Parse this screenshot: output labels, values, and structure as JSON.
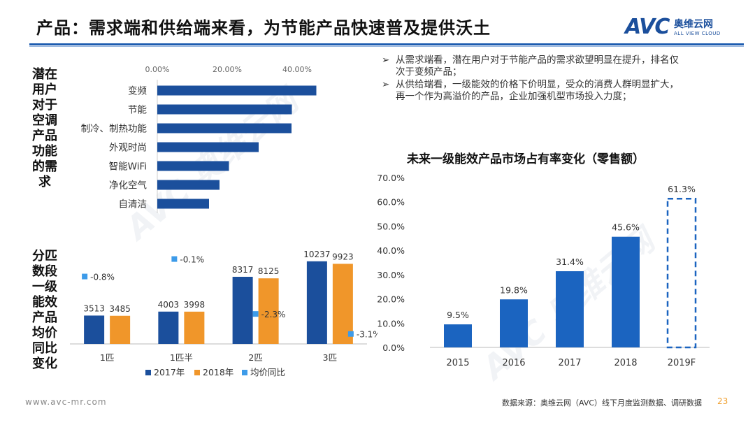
{
  "header": {
    "title": "产品：需求端和供给端来看，为节能产品快速普及提供沃土",
    "logo_text": "AVC",
    "logo_cn": "奥维云网",
    "logo_en": "ALL VIEW CLOUD",
    "accent_color": "#1d5cb0"
  },
  "left_labels": {
    "top": [
      "潜在",
      "用户",
      "对于",
      "空调",
      "产品",
      "功能",
      "的需",
      "求"
    ],
    "bottom": [
      "分匹",
      "数段",
      "一级",
      "能效",
      "产品",
      "均价",
      "同比",
      "变化"
    ]
  },
  "bullets": {
    "arrow": "➢",
    "items": [
      "从需求端看，潜在用户对于节能产品的需求欲望明显在提升，排名仅次于变频产品；",
      "从供给端看，一级能效的价格下价明显，受众的消费人群明显扩大，再一个作为高溢价的产品，企业加强机型市场投入力度；"
    ]
  },
  "footer": {
    "url": "www.avc-mr.com",
    "source": "数据来源：奥维云网（AVC）线下月度监测数据、调研数据",
    "page": "23"
  },
  "watermark": {
    "text": "AVC 奥维云网",
    "sub": "ALL VIEW CLOUD"
  },
  "chart_data": [
    {
      "type": "bar",
      "orientation": "horizontal",
      "title": "",
      "categories": [
        "变频",
        "节能",
        "制冷、制热功能",
        "外观时尚",
        "智能WiFi",
        "净化空气",
        "自清洁"
      ],
      "values": [
        0.455,
        0.385,
        0.384,
        0.29,
        0.205,
        0.178,
        0.148
      ],
      "xlim": [
        0,
        0.5
      ],
      "ticks": [
        0,
        0.2,
        0.4
      ],
      "tick_labels": [
        "0.00%",
        "20.00%",
        "40.00%"
      ],
      "color": "#1b4f9c"
    },
    {
      "type": "bar",
      "title": "",
      "categories": [
        "1匹",
        "1匹半",
        "2匹",
        "3匹"
      ],
      "series": [
        {
          "name": "2017年",
          "values": [
            3513,
            4003,
            8317,
            10237
          ],
          "color": "#1b4f9c"
        },
        {
          "name": "2018年",
          "values": [
            3485,
            3998,
            8125,
            9923
          ],
          "color": "#f0962a"
        }
      ],
      "ylim": [
        0,
        11000
      ],
      "secondary_series": {
        "name": "均价同比",
        "type": "marker",
        "color": "#3d9be9",
        "values": [
          -0.008,
          -0.001,
          -0.023,
          -0.031
        ],
        "labels": [
          "-0.8%",
          "-0.1%",
          "-2.3%",
          "-3.1%"
        ],
        "ylim": [
          -0.035,
          0.0
        ]
      },
      "legend": "bottom"
    },
    {
      "type": "bar",
      "title": "未来一级能效产品市场占有率变化（零售额）",
      "categories": [
        "2015",
        "2016",
        "2017",
        "2018",
        "2019F"
      ],
      "values": [
        9.5,
        19.8,
        31.4,
        45.6,
        61.3
      ],
      "value_labels": [
        "9.5%",
        "19.8%",
        "31.4%",
        "45.6%",
        "61.3%"
      ],
      "forecast_index": 4,
      "ylim": [
        0,
        70
      ],
      "ticks": [
        0,
        10,
        20,
        30,
        40,
        50,
        60,
        70
      ],
      "tick_labels": [
        "0.0%",
        "10.0%",
        "20.0%",
        "30.0%",
        "40.0%",
        "50.0%",
        "60.0%",
        "70.0%"
      ],
      "ylabel": "",
      "xlabel": "",
      "color": "#1b64c0"
    }
  ]
}
